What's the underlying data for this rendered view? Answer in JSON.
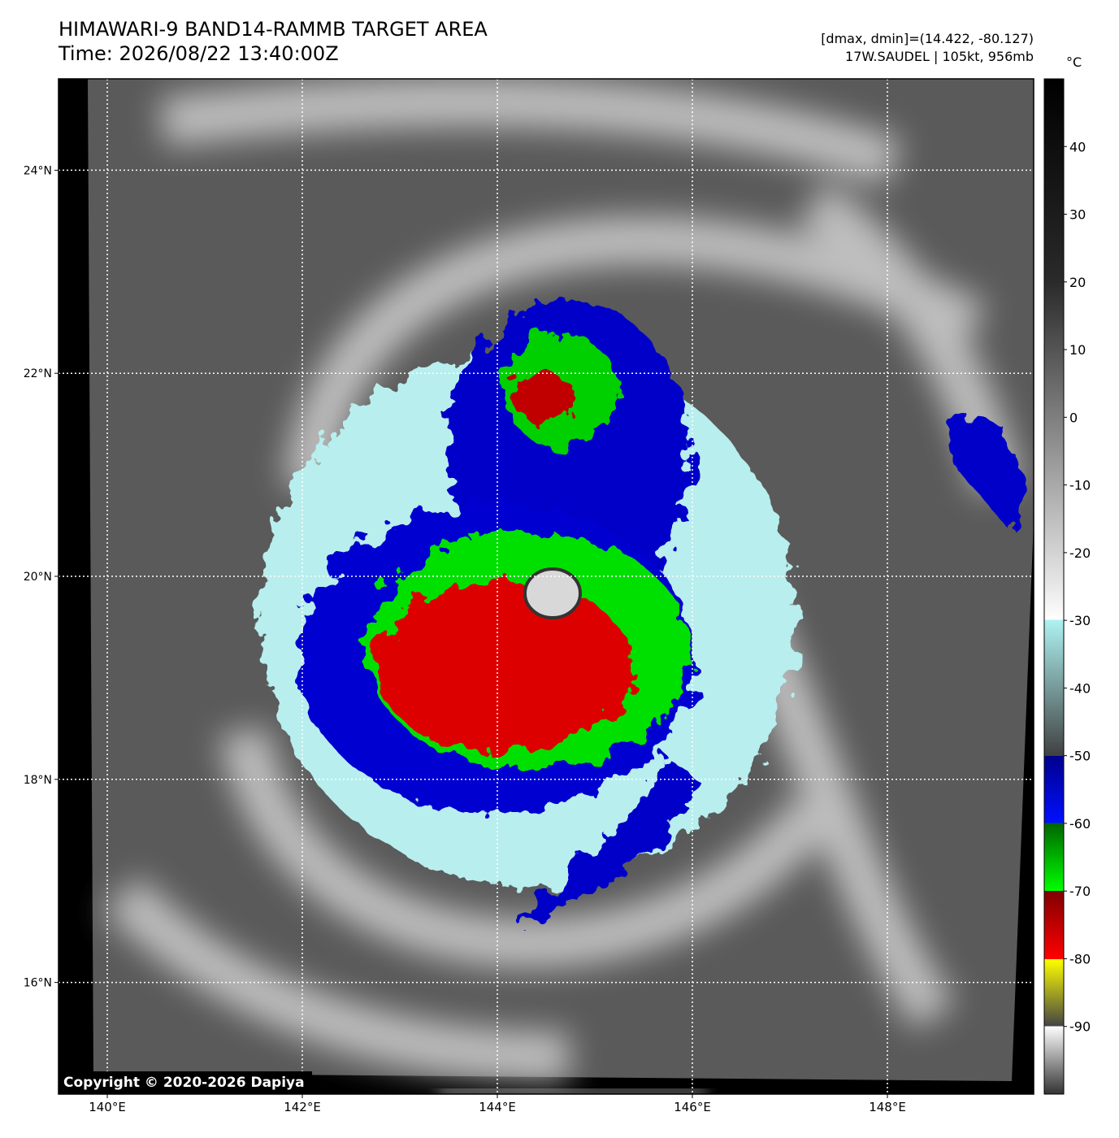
{
  "header": {
    "title": "HIMAWARI-9 BAND14-RAMMB TARGET AREA",
    "time": "Time: 2026/08/22 13:40:00Z",
    "range": "[dmax, dmin]=(14.422, -80.127)",
    "storm": "17W.SAUDEL | 105kt, 956mb"
  },
  "map": {
    "xlim": [
      139.5,
      149.5
    ],
    "ylim": [
      14.9,
      24.9
    ],
    "grid": true,
    "xticks": [
      {
        "value": 140,
        "label": "140°E"
      },
      {
        "value": 142,
        "label": "142°E"
      },
      {
        "value": 144,
        "label": "144°E"
      },
      {
        "value": 146,
        "label": "146°E"
      },
      {
        "value": 148,
        "label": "148°E"
      }
    ],
    "yticks": [
      {
        "value": 16,
        "label": "16°N"
      },
      {
        "value": 18,
        "label": "18°N"
      },
      {
        "value": 20,
        "label": "20°N"
      },
      {
        "value": 22,
        "label": "22°N"
      },
      {
        "value": 24,
        "label": "24°N"
      }
    ]
  },
  "colorbar": {
    "unit": "°C",
    "clim": [
      -100,
      50
    ],
    "ticks": [
      40,
      30,
      20,
      10,
      0,
      -10,
      -20,
      -30,
      -40,
      -50,
      -60,
      -70,
      -80,
      -90
    ]
  },
  "copyright": "Copyright © 2020-2026 Dapiya"
}
